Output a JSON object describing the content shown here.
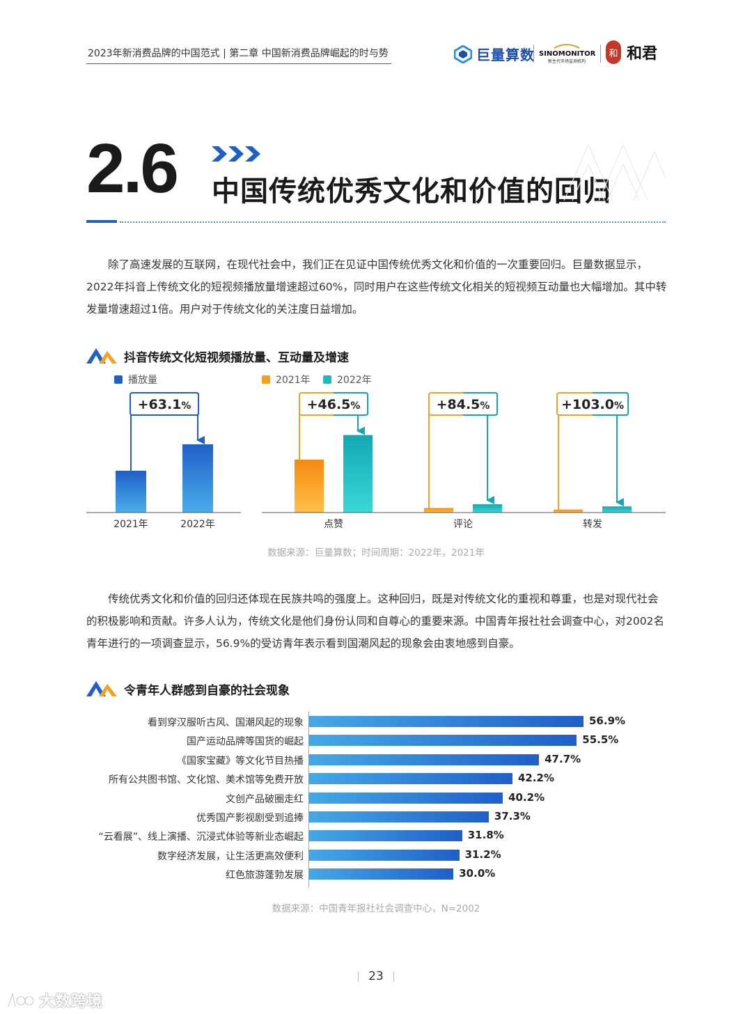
{
  "header": {
    "text": "2023年新消费品牌的中国范式 | 第二章  中国新消费品牌崛起的时与势",
    "logo_juliang": "巨量算数",
    "logo_sino": "SINOMONITOR",
    "logo_sino_sub": "新生代市场监测机构",
    "logo_hejun_seal": "和",
    "logo_hejun": "和君"
  },
  "section": {
    "number": "2.6",
    "title": "中国传统优秀文化和价值的回归"
  },
  "paragraph1": "除了高速发展的互联网，在现代社会中，我们正在见证中国传统优秀文化和价值的一次重要回归。巨量数据显示，2022年抖音上传统文化的短视频播放量增速超过60%，同时用户在这些传统文化相关的短视频互动量也大幅增加。其中转发量增速超过1倍。用户对于传统文化的关注度日益增加。",
  "chart1": {
    "title": "抖音传统文化短视频播放量、互动量及增速",
    "legend_play": "播放量",
    "legend_2021": "2021年",
    "legend_2022": "2022年",
    "source": "数据来源：巨量算数；时间周期：2022年，2021年",
    "colors": {
      "play": "#1f5fc8",
      "y2021": "#f5a020",
      "y2022": "#20b8c0"
    }
  },
  "chart_data": [
    {
      "type": "bar",
      "title": "抖音传统文化短视频播放量、互动量及增速",
      "panel": "播放量",
      "categories": [
        "2021年",
        "2022年"
      ],
      "series": [
        {
          "name": "播放量",
          "values": [
            100,
            163.1
          ]
        }
      ],
      "growth_label": "+63.1%"
    },
    {
      "type": "bar",
      "panel": "互动量",
      "categories": [
        "点赞",
        "评论",
        "转发"
      ],
      "series": [
        {
          "name": "2021年",
          "values": [
            100,
            8.5,
            5.7
          ]
        },
        {
          "name": "2022年",
          "values": [
            146.5,
            15.7,
            11.6
          ]
        }
      ],
      "growth_labels": [
        "+46.5%",
        "+84.5%",
        "+103.0%"
      ]
    },
    {
      "type": "bar",
      "orientation": "horizontal",
      "title": "令青年人群感到自豪的社会现象",
      "categories": [
        "看到穿汉服听古风、国潮风起的现象",
        "国产运动品牌等国货的崛起",
        "《国家宝藏》等文化节目热播",
        "所有公共图书馆、文化馆、美术馆等免费开放",
        "文创产品破圈走红",
        "优秀国产影视剧受到追捧",
        "“云看展”、线上演播、沉浸式体验等新业态崛起",
        "数字经济发展，让生活更高效便利",
        "红色旅游蓬勃发展"
      ],
      "values": [
        56.9,
        55.5,
        47.7,
        42.2,
        40.2,
        37.3,
        31.8,
        31.2,
        30.0
      ],
      "value_labels": [
        "56.9%",
        "55.5%",
        "47.7%",
        "42.2%",
        "40.2%",
        "37.3%",
        "31.8%",
        "31.2%",
        "30.0%"
      ],
      "source": "数据来源：中国青年报社社会调查中心，N=2002"
    }
  ],
  "paragraph2": "传统优秀文化和价值的回归还体现在民族共鸣的强度上。这种回归，既是对传统文化的重视和尊重，也是对现代社会的积极影响和贡献。许多人认为，传统文化是他们身份认同和自尊心的重要来源。中国青年报社社会调查中心，对2002名青年进行的一项调查显示，56.9%的受访青年表示看到国潮风起的现象会由衷地感到自豪。",
  "chart2": {
    "title": "令青年人群感到自豪的社会现象",
    "source": "数据来源：中国青年报社社会调查中心，N=2002"
  },
  "page_number": "23",
  "watermark": "大数跨境"
}
